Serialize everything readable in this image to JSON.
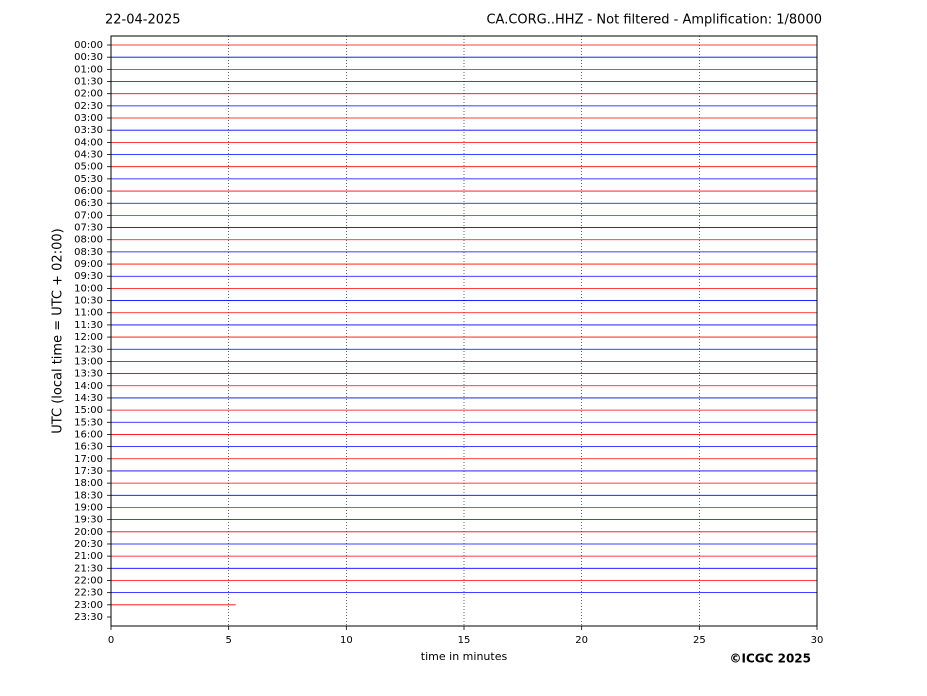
{
  "chart_data": {
    "type": "helicorder",
    "title_left": "22-04-2025",
    "title_right": "CA.CORG..HHZ - Not filtered - Amplification: 1/8000",
    "xlabel": "time in minutes",
    "ylabel": "UTC (local time = UTC + 02:00)",
    "footer": "©ICGC 2025",
    "categories": [
      "00:00",
      "00:30",
      "01:00",
      "01:30",
      "02:00",
      "02:30",
      "03:00",
      "03:30",
      "04:00",
      "04:30",
      "05:00",
      "05:30",
      "06:00",
      "06:30",
      "07:00",
      "07:30",
      "08:00",
      "08:30",
      "09:00",
      "09:30",
      "10:00",
      "10:30",
      "11:00",
      "11:30",
      "12:00",
      "12:30",
      "13:00",
      "13:30",
      "14:00",
      "14:30",
      "15:00",
      "15:30",
      "16:00",
      "16:30",
      "17:00",
      "17:30",
      "18:00",
      "18:30",
      "19:00",
      "19:30",
      "20:00",
      "20:30",
      "21:00",
      "21:30",
      "22:00",
      "22:30",
      "23:00",
      "23:30"
    ],
    "values": [
      30,
      30,
      30,
      30,
      30,
      30,
      30,
      30,
      30,
      30,
      30,
      30,
      30,
      30,
      30,
      30,
      30,
      30,
      30,
      30,
      30,
      30,
      30,
      30,
      30,
      30,
      30,
      30,
      30,
      30,
      30,
      30,
      30,
      30,
      30,
      30,
      30,
      30,
      30,
      30,
      30,
      30,
      30,
      30,
      30,
      30,
      5.3,
      null
    ],
    "colors": [
      "#ff0000",
      "#0000ff"
    ],
    "xlim": [
      0,
      30
    ],
    "xticks": [
      0,
      5,
      10,
      15,
      20,
      25,
      30
    ],
    "grid": true
  }
}
